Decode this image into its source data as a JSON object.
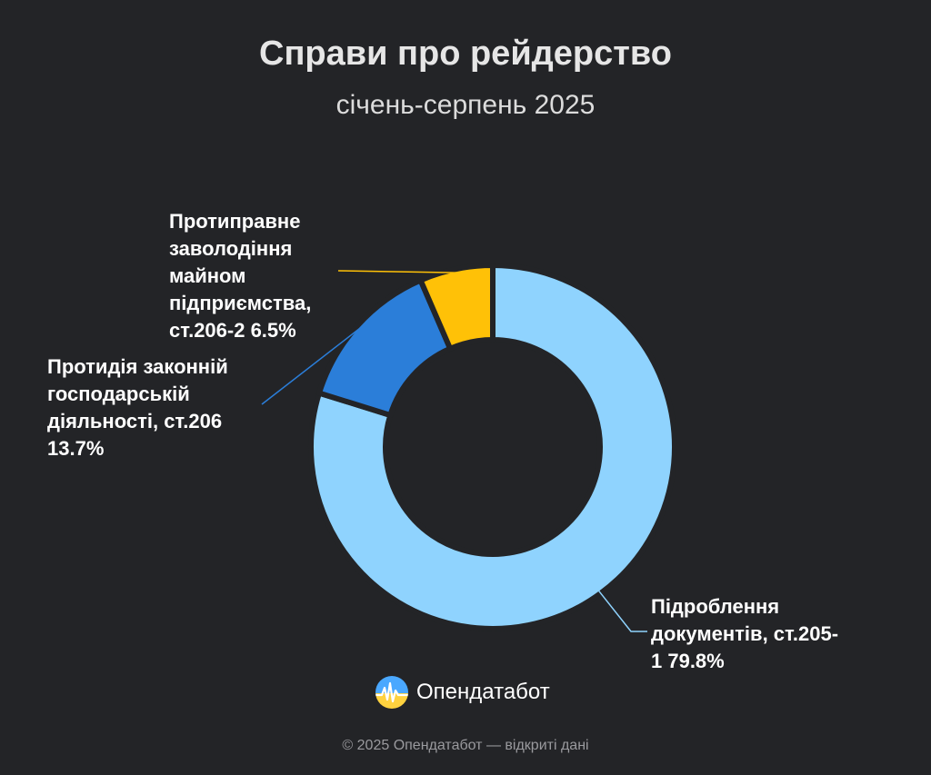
{
  "title": "Справи про рейдерство",
  "subtitle": "січень-серпень 2025",
  "chart_data": {
    "type": "pie",
    "style": "donut",
    "categories": [
      "Підроблення документів, ст.205-1",
      "Протидія законній господарській діяльності, ст.206",
      "Протиправне заволодіння майном підприємства, ст.206-2"
    ],
    "values": [
      79.8,
      13.7,
      6.5
    ],
    "colors": [
      "#8fd3fe",
      "#2b7ed9",
      "#ffc107"
    ],
    "labels": [
      {
        "lines": [
          "Підроблення",
          "документів, ст.205-",
          "1 79.8%"
        ]
      },
      {
        "lines": [
          "Протидія законній",
          "господарській",
          "діяльності, ст.206",
          "13.7%"
        ]
      },
      {
        "lines": [
          "Протиправне",
          "заволодіння",
          "майном",
          "підприємства,",
          "ст.206-2  6.5%"
        ]
      }
    ]
  },
  "brand": {
    "name": "Опендатабот",
    "icon": "opendatabot-logo-icon"
  },
  "footer": "© 2025 Опендатабот — відкриті дані"
}
